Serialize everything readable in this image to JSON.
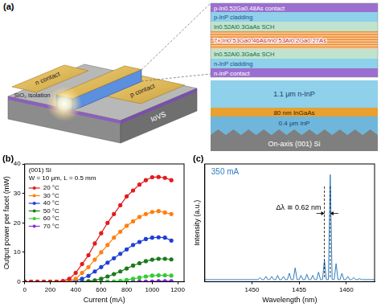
{
  "panel_a": {
    "label": "(a)",
    "device": {
      "n_contact": "n contact",
      "isolation": "SiO₂ isolation",
      "p_contact": "p contact",
      "substrate": "IoVS"
    },
    "active_stack": [
      "p-In0.52Ga0.48As contact",
      "p-InP cladding",
      "In0.52Al0.3GaAs SCH",
      "7× In0.53Ga0.46As/In0.53Al0.2Ga0.27As",
      "In0.52Al0.3GaAs SCH",
      "n-InP cladding",
      "n-InP contact"
    ],
    "buffer_stack": [
      "1.1 μm n-InP",
      "80 nm InGaAs",
      "0.4 μm InP",
      "On-axis (001) Si"
    ]
  },
  "chart_data": [
    {
      "type": "line",
      "label": "(b)",
      "annotations": [
        "(001) Si",
        "W = 10 μm, L = 0.5 mm"
      ],
      "xlabel": "Current (mA)",
      "ylabel": "Output power per facet (mW)",
      "x": [
        0,
        50,
        100,
        150,
        200,
        250,
        300,
        350,
        400,
        450,
        500,
        550,
        600,
        650,
        700,
        750,
        800,
        850,
        900,
        950,
        1000,
        1050,
        1100,
        1150
      ],
      "series": [
        {
          "name": "20 °C",
          "color": "#e41a1c",
          "values": [
            0,
            0,
            0,
            0,
            0,
            0,
            0.3,
            1,
            3,
            6,
            9,
            13,
            16.5,
            20,
            23,
            26,
            29,
            31,
            33,
            34.5,
            35.5,
            35.6,
            35.3,
            34.5
          ]
        },
        {
          "name": "30 °C",
          "color": "#ff7f0e",
          "values": [
            0,
            0,
            0,
            0,
            0,
            0,
            0,
            0.3,
            1,
            3,
            5,
            7.5,
            10,
            12.5,
            15,
            17,
            19,
            20.5,
            22,
            23,
            23.7,
            24,
            23.5,
            23
          ]
        },
        {
          "name": "40 °C",
          "color": "#1f3fd6",
          "values": [
            0,
            0,
            0,
            0,
            0,
            0,
            0,
            0,
            0.3,
            1,
            2,
            3.5,
            5,
            6.5,
            8,
            9.5,
            11,
            12.5,
            13.5,
            14.5,
            15,
            15.1,
            15,
            14
          ]
        },
        {
          "name": "50 °C",
          "color": "#1a7a1a",
          "values": [
            0,
            0,
            0,
            0,
            0,
            0,
            0,
            0,
            0,
            0,
            0.2,
            0.5,
            1,
            1.8,
            2.6,
            3.5,
            4.5,
            5.5,
            6.3,
            7,
            7.5,
            7.8,
            7.8,
            7.6
          ]
        },
        {
          "name": "60 °C",
          "color": "#33cc33",
          "values": [
            0,
            0,
            0,
            0,
            0,
            0,
            0,
            0,
            0,
            0,
            0,
            0,
            0,
            0,
            0.1,
            0.3,
            0.6,
            1,
            1.4,
            1.8,
            2.1,
            2.2,
            2.2,
            2.1
          ]
        },
        {
          "name": "70 °C",
          "color": "#8a2be2",
          "values": [
            0,
            0,
            0,
            0,
            0,
            0,
            0,
            0,
            0,
            0,
            0,
            0,
            0,
            0,
            0,
            0,
            0,
            0,
            0.05,
            0.1,
            0.1,
            0.2,
            0.2,
            0.2
          ]
        }
      ],
      "xlim": [
        0,
        1250
      ],
      "xticks": [
        0,
        200,
        400,
        600,
        800,
        1000,
        1200
      ],
      "ylim": [
        0,
        40
      ],
      "yticks": [
        0,
        10,
        20,
        30,
        40
      ],
      "grid": false,
      "legend": "upper left",
      "marker": "circle",
      "line_style": "solid"
    },
    {
      "type": "line",
      "label": "(c)",
      "annotations": [
        "350 mA",
        "Δλ ≅ 0.62 nm"
      ],
      "xlabel": "Wavelength (nm)",
      "ylabel": "Intensity (a.u.)",
      "x": [
        1445,
        1450.5,
        1450.66,
        1450.86,
        1451.06,
        1451.28,
        1451.48,
        1451.68,
        1451.9,
        1452.1,
        1452.3,
        1452.52,
        1452.72,
        1452.92,
        1453.14,
        1453.34,
        1453.54,
        1453.76,
        1453.96,
        1454.16,
        1454.38,
        1454.58,
        1454.78,
        1455.0,
        1455.2,
        1455.4,
        1455.62,
        1455.82,
        1456.02,
        1456.24,
        1456.44,
        1456.64,
        1456.86,
        1457.06,
        1457.26,
        1457.48,
        1457.68,
        1457.88,
        1458.1,
        1458.3,
        1458.5,
        1458.72,
        1458.92,
        1459.12,
        1459.34,
        1459.54,
        1459.74,
        1459.96,
        1460.16,
        1460.36,
        1460.58,
        1460.78,
        1460.98,
        1461.2,
        1461.4,
        1461.6,
        1463
      ],
      "values": [
        0.02,
        0.02,
        0.02,
        0.04,
        0.02,
        0.02,
        0.05,
        0.02,
        0.02,
        0.05,
        0.02,
        0.02,
        0.06,
        0.02,
        0.02,
        0.05,
        0.02,
        0.02,
        0.08,
        0.02,
        0.02,
        0.13,
        0.02,
        0.02,
        0.06,
        0.02,
        0.02,
        0.07,
        0.02,
        0.02,
        0.06,
        0.02,
        0.02,
        0.09,
        0.02,
        0.02,
        0.2,
        0.02,
        0.02,
        1.0,
        0.02,
        0.02,
        0.17,
        0.02,
        0.02,
        0.08,
        0.02,
        0.02,
        0.05,
        0.02,
        0.02,
        0.04,
        0.02,
        0.02,
        0.03,
        0.02,
        0.02
      ],
      "color": "#2f7fc1",
      "mode_markers": [
        1457.68,
        1458.3
      ],
      "xlim": [
        1445,
        1463
      ],
      "xticks": [
        1450,
        1455,
        1460
      ],
      "ylim": [
        0,
        1.1
      ],
      "tick_labels": "x",
      "grid": false,
      "marker": "none",
      "line_style": "solid"
    }
  ]
}
